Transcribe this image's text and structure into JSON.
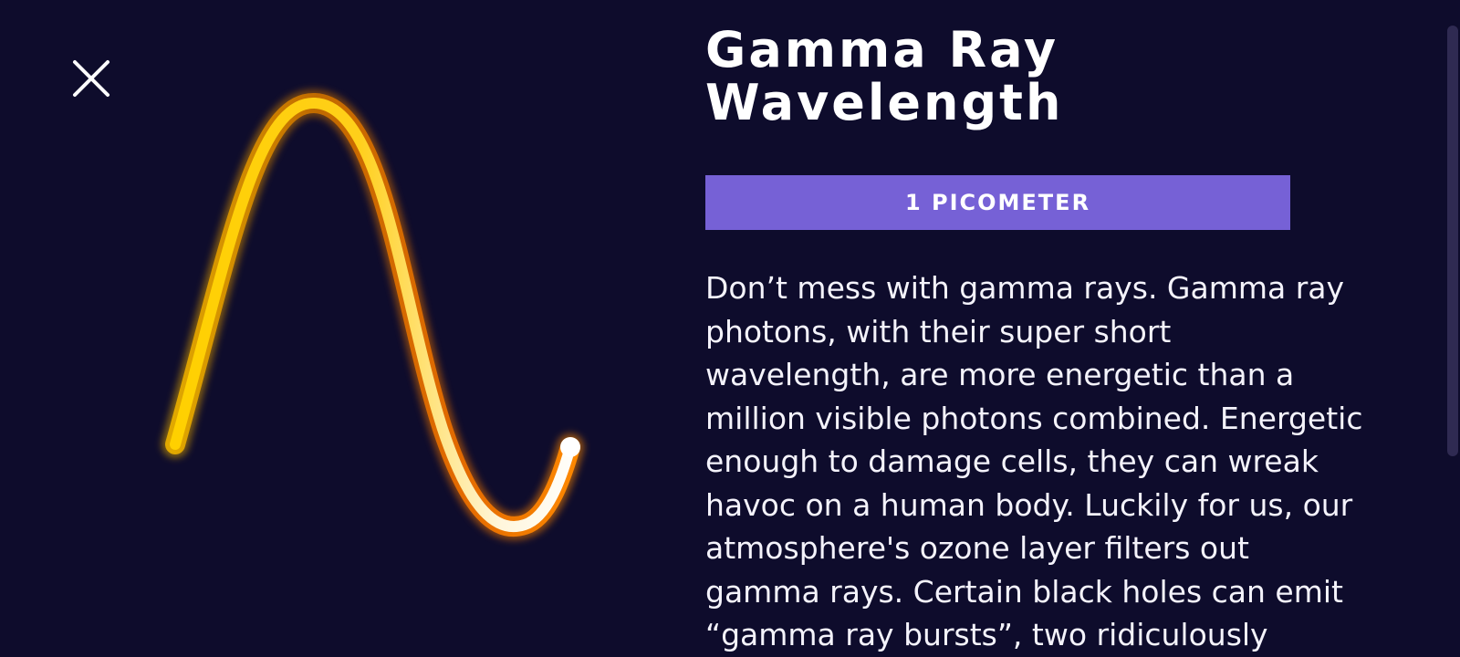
{
  "close": {
    "icon": "close-icon"
  },
  "wave_illustration": {
    "icon": "gamma-ray-wave-icon",
    "colors": [
      "#ffd400",
      "#ff9c00",
      "#ffffff"
    ]
  },
  "article": {
    "title_line1": "Gamma Ray",
    "title_line2": "Wavelength",
    "badge": "1 PICOMETER",
    "body": "Don’t mess with gamma rays. Gamma ray\nphotons, with their super short\nwavelength, are more energetic than a\nmillion visible photons combined. Energetic\nenough to damage cells, they can wreak\nhavoc on a human body. Luckily for us, our\natmosphere's ozone layer filters out\ngamma rays. Certain black holes can emit\n“gamma ray bursts”, two ridiculously"
  },
  "colors": {
    "background": "#0e0c2c",
    "badge": "#7661d6",
    "text": "#ffffff"
  }
}
